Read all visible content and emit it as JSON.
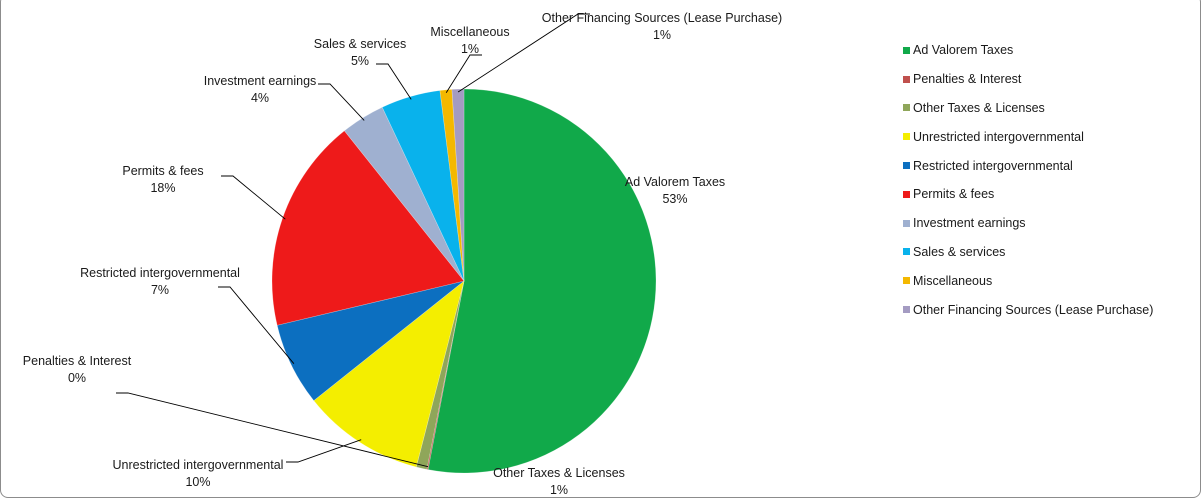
{
  "chart_data": {
    "type": "pie",
    "start_angle_deg": 0,
    "direction": "clockwise",
    "legend_position": "right",
    "slices": [
      {
        "label": "Ad Valorem Taxes",
        "legend": "Ad Valorem Taxes",
        "data_label": "Ad Valorem  Taxes",
        "value": 53,
        "percent_label": "53%",
        "color": "#11a94a"
      },
      {
        "label": "Penalties & Interest",
        "legend": "Penalties & Interest",
        "data_label": "Penalties  & Interest",
        "value": 0.1,
        "percent_label": "0%",
        "color": "#c0504d"
      },
      {
        "label": "Other Taxes & Licenses",
        "legend": "Other Taxes & Licenses",
        "data_label": "Other Taxes & Licenses",
        "value": 0.9,
        "percent_label": "1%",
        "color": "#8fa65a"
      },
      {
        "label": "Unrestricted intergovernmental",
        "legend": "Unrestricted intergovernmental",
        "data_label": "Unrestricted   intergovernmental",
        "value": 10.3,
        "percent_label": "10%",
        "color": "#f4ee00"
      },
      {
        "label": "Restricted intergovernmental",
        "legend": "Restricted intergovernmental",
        "data_label": "Restricted   intergovernmental",
        "value": 7,
        "percent_label": "7%",
        "color": "#0c6fc0"
      },
      {
        "label": "Permits & fees",
        "legend": "Permits & fees",
        "data_label": "Permits  & fees",
        "value": 18,
        "percent_label": "18%",
        "color": "#ee1a1a"
      },
      {
        "label": "Investment earnings",
        "legend": "Investment earnings",
        "data_label": "Investment earnings",
        "value": 3.7,
        "percent_label": "4%",
        "color": "#9fb0d0"
      },
      {
        "label": "Sales & services",
        "legend": "Sales & services",
        "data_label": "Sales  & services",
        "value": 5,
        "percent_label": "5%",
        "color": "#09b2ec"
      },
      {
        "label": "Miscellaneous",
        "legend": "Miscellaneous",
        "data_label": "Miscellaneous",
        "value": 1,
        "percent_label": "1%",
        "color": "#f4b800"
      },
      {
        "label": "Other Financing Sources (Lease Purchase)",
        "legend": "Other Financing Sources (Lease Purchase)",
        "data_label": "Other Financing  Sources (Lease Purchase)",
        "value": 1,
        "percent_label": "1%",
        "color": "#a49bc2"
      }
    ]
  }
}
